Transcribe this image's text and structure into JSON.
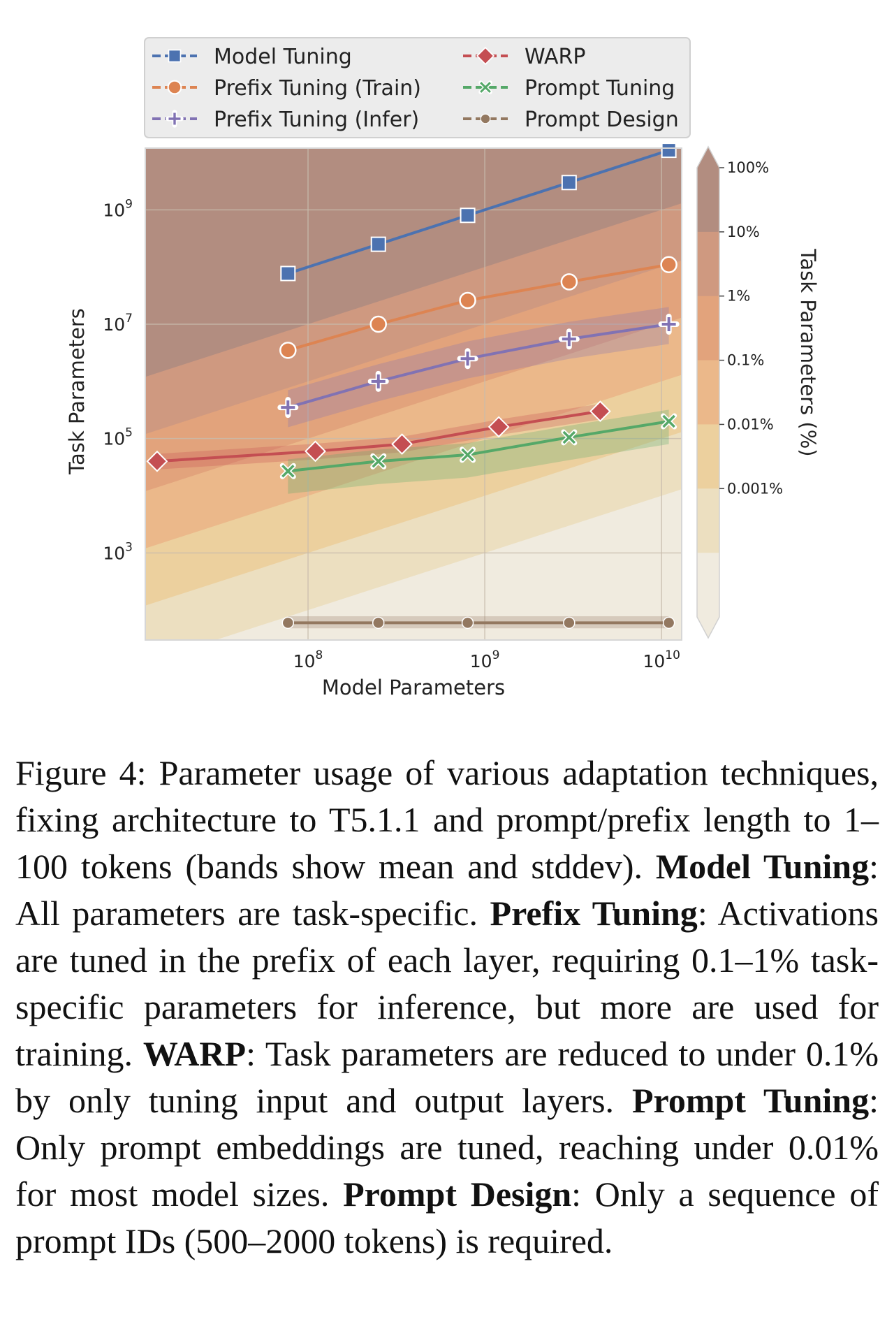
{
  "chart_data": {
    "type": "line",
    "xlabel": "Model Parameters",
    "ylabel": "Task Parameters",
    "xscale": "log",
    "yscale": "log",
    "xlim": [
      12000000,
      13000000000
    ],
    "ylim": [
      30,
      12000000000
    ],
    "x_ticks": [
      {
        "value": 100000000,
        "label": "10",
        "exp": "8"
      },
      {
        "value": 1000000000,
        "label": "10",
        "exp": "9"
      },
      {
        "value": 10000000000,
        "label": "10",
        "exp": "10"
      }
    ],
    "y_ticks": [
      {
        "value": 1000,
        "label": "10",
        "exp": "3"
      },
      {
        "value": 100000,
        "label": "10",
        "exp": "5"
      },
      {
        "value": 10000000,
        "label": "10",
        "exp": "7"
      },
      {
        "value": 1000000000,
        "label": "10",
        "exp": "9"
      }
    ],
    "grid": true,
    "legend_position": "top",
    "background_bands": "diagonal contours of task parameters as a percentage of model parameters",
    "series": [
      {
        "name": "Model Tuning",
        "color": "#4c72b0",
        "marker": "square",
        "x": [
          77000000,
          250000000,
          800000000,
          3000000000,
          11000000000
        ],
        "y": [
          77000000,
          250000000,
          800000000,
          3000000000,
          11000000000
        ],
        "band": null
      },
      {
        "name": "Prefix Tuning (Train)",
        "color": "#dd8452",
        "marker": "circle",
        "x": [
          77000000,
          250000000,
          800000000,
          3000000000,
          11000000000
        ],
        "y": [
          3500000,
          10000000,
          26000000,
          55000000,
          110000000
        ],
        "band": null
      },
      {
        "name": "Prefix Tuning (Infer)",
        "color": "#8172b3",
        "marker": "plus",
        "x": [
          77000000,
          250000000,
          800000000,
          3000000000,
          11000000000
        ],
        "y": [
          350000,
          1000000,
          2500000,
          5500000,
          10000000
        ],
        "band": [
          0.45,
          2.0
        ]
      },
      {
        "name": "WARP",
        "color": "#c44e52",
        "marker": "diamond",
        "x": [
          14000000,
          110000000,
          340000000,
          1200000000,
          4500000000
        ],
        "y": [
          40000,
          60000,
          80000,
          160000,
          300000
        ],
        "band": [
          0.72,
          1.35
        ]
      },
      {
        "name": "Prompt Tuning",
        "color": "#55a868",
        "marker": "x",
        "x": [
          77000000,
          250000000,
          800000000,
          3000000000,
          11000000000
        ],
        "y": [
          27000,
          40000,
          52000,
          105000,
          200000
        ],
        "band": [
          0.4,
          1.6
        ]
      },
      {
        "name": "Prompt Design",
        "color": "#937860",
        "marker": "dot",
        "x": [
          77000000,
          250000000,
          800000000,
          3000000000,
          11000000000
        ],
        "y": [
          60,
          60,
          60,
          60,
          60
        ],
        "band": [
          0.8,
          1.3
        ]
      }
    ],
    "colorbar": {
      "title": "Task Parameters (%)",
      "labels": [
        "100%",
        "10%",
        "1%",
        "0.1%",
        "0.01%",
        "0.001%"
      ],
      "colors": [
        "#f0ebdf",
        "#ecdfc0",
        "#ecd09e",
        "#ebb88a",
        "#e2a37c",
        "#cf9980",
        "#b28d80"
      ]
    }
  },
  "caption": {
    "figure_label": "Figure 4:",
    "intro": " Parameter usage of various adaptation techniques, fixing architecture to T5.1.1 and prompt/prefix length to 1–100 tokens (bands show mean and stddev). ",
    "items": [
      {
        "term": "Model Tuning",
        "text": ": All parameters are task-specific. "
      },
      {
        "term": "Prefix Tuning",
        "text": ": Activations are tuned in the prefix of each layer, requiring 0.1–1% task-specific parameters for inference, but more are used for training. "
      },
      {
        "term": "WARP",
        "text": ": Task parameters are reduced to under 0.1% by only tuning input and output layers. "
      },
      {
        "term": "Prompt Tuning",
        "text": ": Only prompt embeddings are tuned, reaching under 0.01% for most model sizes. "
      },
      {
        "term": "Prompt Design",
        "text": ": Only a sequence of prompt IDs (500–2000 tokens) is required."
      }
    ]
  }
}
